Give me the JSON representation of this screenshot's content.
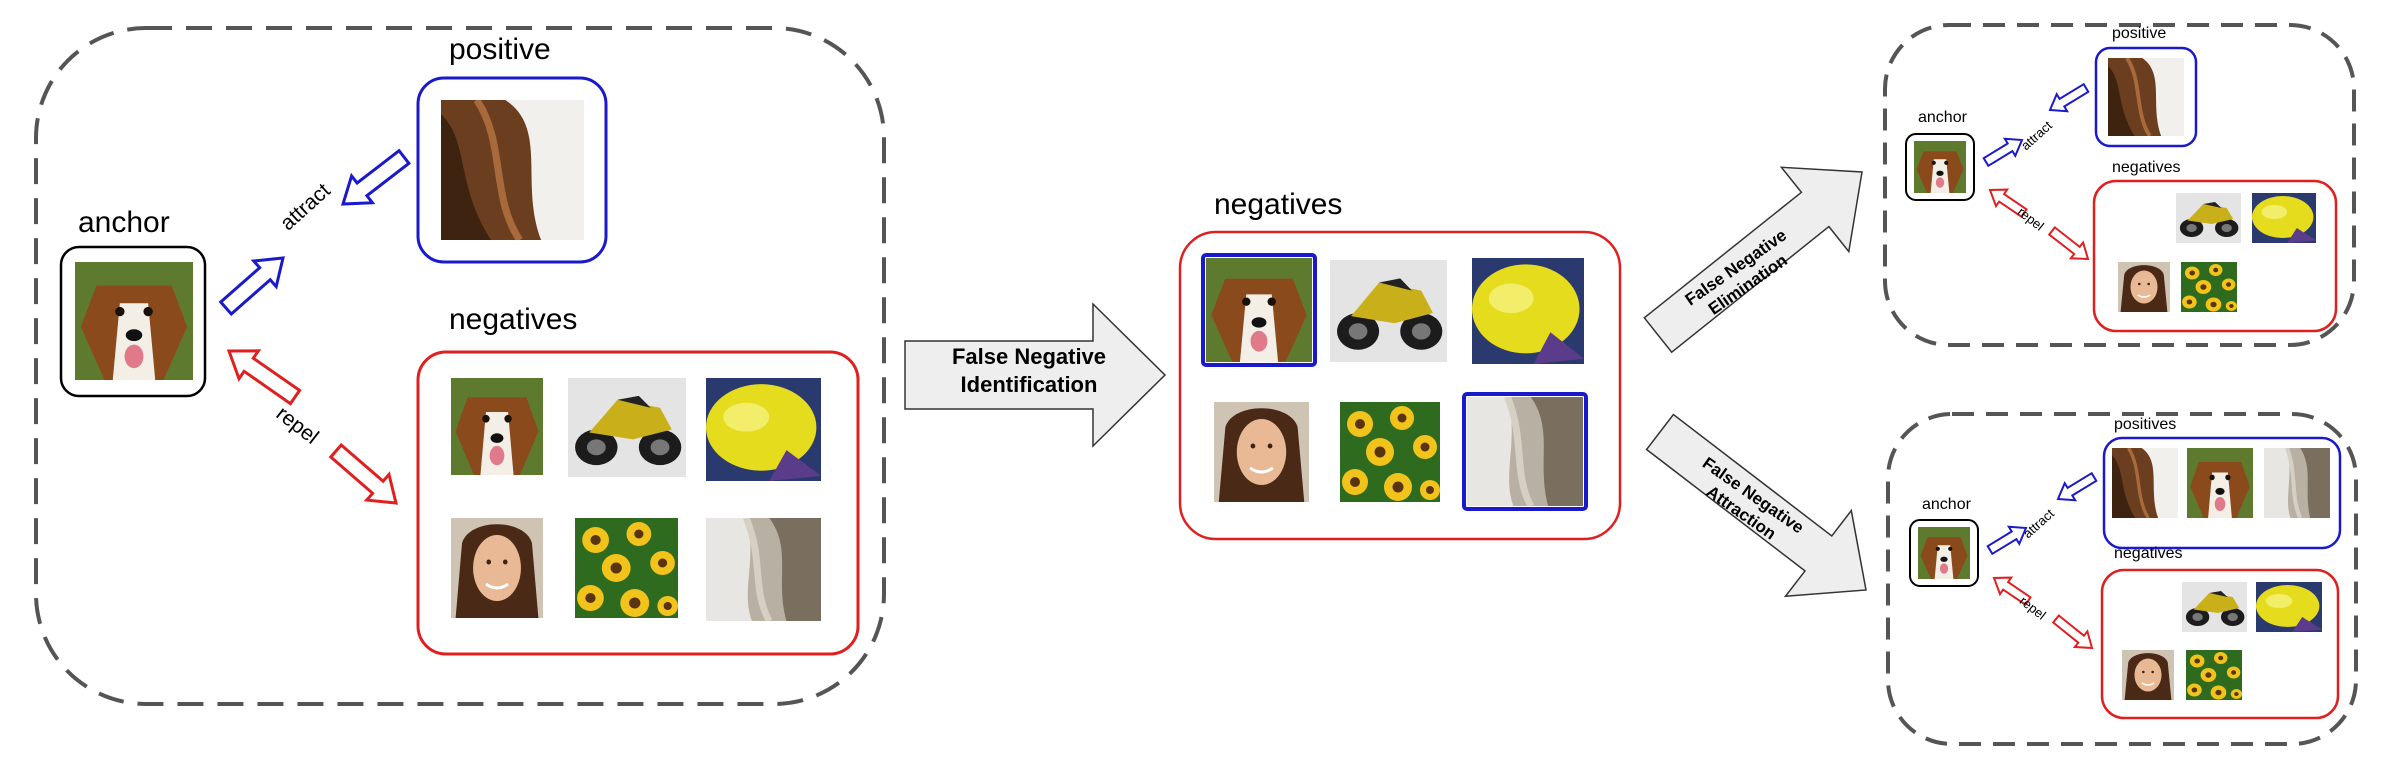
{
  "colors": {
    "positive": "#1a1acc",
    "negative": "#e02020",
    "dashed": "#555555",
    "arrow_fill": "#eeeeee"
  },
  "left": {
    "positive_label": "positive",
    "negatives_label": "negatives",
    "anchor_label": "anchor",
    "attract_label": "attract",
    "repel_label": "repel"
  },
  "process": {
    "identification": [
      "False Negative",
      "Identification"
    ],
    "elimination": [
      "False Negative",
      "Elimination"
    ],
    "attraction": [
      "False Negative",
      "Attraction"
    ]
  },
  "middle": {
    "negatives_label": "negatives"
  },
  "top_right": {
    "positive_label": "positive",
    "negatives_label": "negatives",
    "anchor_label": "anchor",
    "attract_label": "attract",
    "repel_label": "repel"
  },
  "bottom_right": {
    "positives_label": "positives",
    "negatives_label": "negatives",
    "anchor_label": "anchor",
    "attract_label": "attract",
    "repel_label": "repel"
  },
  "image_subjects": [
    "dog-face-image",
    "fur-patch-image",
    "motorcycle-image",
    "yellow-fish-image",
    "woman-portrait-image",
    "sunflowers-image",
    "blurred-fur-image"
  ]
}
